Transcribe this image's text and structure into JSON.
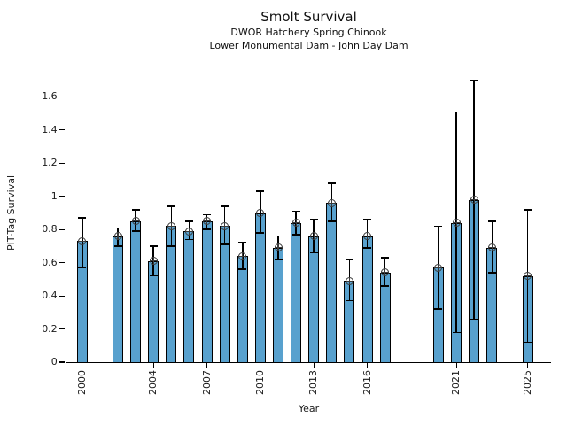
{
  "chart_data": {
    "type": "bar",
    "title": "Smolt Survival",
    "subtitle": [
      "DWOR Hatchery Spring Chinook",
      "Lower Monumental Dam - John Day Dam"
    ],
    "xlabel": "Year",
    "ylabel": "PIT-Tag Survival",
    "ylim": [
      0,
      1.8
    ],
    "xlim": [
      1999.1,
      2026.3
    ],
    "grid": false,
    "legend": "none",
    "bar_color": "#58a1ce",
    "bar_edge_color": "#000000",
    "error_color": "#000000",
    "marker_style": "circle-plus",
    "yticks": [
      0,
      0.2,
      0.4,
      0.6,
      0.8,
      1.0,
      1.2,
      1.4,
      1.6
    ],
    "ytick_labels": [
      "0",
      "0.2",
      "0.4",
      "0.6",
      "0.8",
      "1",
      "1.2",
      "1.4",
      "1.6"
    ],
    "xticks": [
      2000,
      2004,
      2007,
      2010,
      2013,
      2016,
      2021,
      2025
    ],
    "points": [
      {
        "year": 2000,
        "value": 0.73,
        "err_lo": 0.57,
        "err_hi": 0.87
      },
      {
        "year": 2002,
        "value": 0.76,
        "err_lo": 0.7,
        "err_hi": 0.81
      },
      {
        "year": 2003,
        "value": 0.85,
        "err_lo": 0.79,
        "err_hi": 0.92
      },
      {
        "year": 2004,
        "value": 0.61,
        "err_lo": 0.52,
        "err_hi": 0.7
      },
      {
        "year": 2005,
        "value": 0.82,
        "err_lo": 0.7,
        "err_hi": 0.94
      },
      {
        "year": 2006,
        "value": 0.79,
        "err_lo": 0.74,
        "err_hi": 0.85
      },
      {
        "year": 2007,
        "value": 0.85,
        "err_lo": 0.8,
        "err_hi": 0.89
      },
      {
        "year": 2008,
        "value": 0.82,
        "err_lo": 0.71,
        "err_hi": 0.94
      },
      {
        "year": 2009,
        "value": 0.64,
        "err_lo": 0.56,
        "err_hi": 0.72
      },
      {
        "year": 2010,
        "value": 0.9,
        "err_lo": 0.78,
        "err_hi": 1.03
      },
      {
        "year": 2011,
        "value": 0.69,
        "err_lo": 0.62,
        "err_hi": 0.76
      },
      {
        "year": 2012,
        "value": 0.84,
        "err_lo": 0.77,
        "err_hi": 0.91
      },
      {
        "year": 2013,
        "value": 0.76,
        "err_lo": 0.66,
        "err_hi": 0.86
      },
      {
        "year": 2014,
        "value": 0.96,
        "err_lo": 0.85,
        "err_hi": 1.08
      },
      {
        "year": 2015,
        "value": 0.49,
        "err_lo": 0.37,
        "err_hi": 0.62
      },
      {
        "year": 2016,
        "value": 0.76,
        "err_lo": 0.69,
        "err_hi": 0.86
      },
      {
        "year": 2017,
        "value": 0.54,
        "err_lo": 0.46,
        "err_hi": 0.63
      },
      {
        "year": 2020,
        "value": 0.57,
        "err_lo": 0.32,
        "err_hi": 0.82
      },
      {
        "year": 2021,
        "value": 0.84,
        "err_lo": 0.18,
        "err_hi": 1.51
      },
      {
        "year": 2022,
        "value": 0.98,
        "err_lo": 0.26,
        "err_hi": 1.7
      },
      {
        "year": 2023,
        "value": 0.69,
        "err_lo": 0.54,
        "err_hi": 0.85
      },
      {
        "year": 2025,
        "value": 0.52,
        "err_lo": 0.12,
        "err_hi": 0.92
      }
    ]
  }
}
